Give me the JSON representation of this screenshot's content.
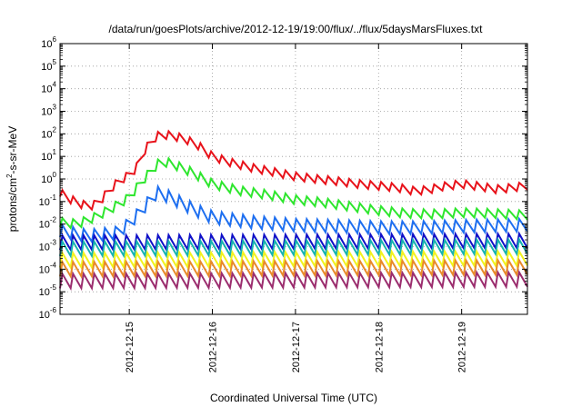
{
  "chart_data": {
    "type": "line",
    "title": "/data/run/goesPlots/archive/2012-12-19/19:00/flux/../flux/5daysMarsFluxes.txt",
    "xlabel": "Coordinated Universal Time (UTC)",
    "ylabel": "protons/cm²-s-sr-MeV",
    "ylabel_parts": {
      "main": "protons/cm",
      "sup": "2",
      "tail": "-s-sr-MeV"
    },
    "y_scale": "log",
    "ylim": [
      1e-06,
      1000000.0
    ],
    "y_ticks": [
      {
        "base": "10",
        "exp": "-6",
        "value": 1e-06
      },
      {
        "base": "10",
        "exp": "-5",
        "value": 1e-05
      },
      {
        "base": "10",
        "exp": "-4",
        "value": 0.0001
      },
      {
        "base": "10",
        "exp": "-3",
        "value": 0.001
      },
      {
        "base": "10",
        "exp": "-2",
        "value": 0.01
      },
      {
        "base": "10",
        "exp": "-1",
        "value": 0.1
      },
      {
        "base": "10",
        "exp": "0",
        "value": 1
      },
      {
        "base": "10",
        "exp": "1",
        "value": 10
      },
      {
        "base": "10",
        "exp": "2",
        "value": 100
      },
      {
        "base": "10",
        "exp": "3",
        "value": 1000
      },
      {
        "base": "10",
        "exp": "4",
        "value": 10000
      },
      {
        "base": "10",
        "exp": "5",
        "value": 100000
      },
      {
        "base": "10",
        "exp": "6",
        "value": 1000000
      }
    ],
    "xlim": [
      "2012-12-14 04:00",
      "2012-12-19 19:00"
    ],
    "x_ticks": [
      "2012-12-15",
      "2012-12-16",
      "2012-12-17",
      "2012-12-18",
      "2012-12-19"
    ],
    "grid": true,
    "legend": "none",
    "series": [
      {
        "color": "#e8121a",
        "x": [
          "2012-12-14 04:00",
          "2012-12-14 06:00",
          "2012-12-14 09:00",
          "2012-12-14 12:00",
          "2012-12-14 15:00",
          "2012-12-14 18:00",
          "2012-12-14 21:00",
          "2012-12-15 00:00",
          "2012-12-15 02:00",
          "2012-12-15 04:00",
          "2012-12-15 06:00",
          "2012-12-15 08:00",
          "2012-12-15 10:00",
          "2012-12-15 12:00",
          "2012-12-15 16:00",
          "2012-12-15 20:00",
          "2012-12-16 00:00",
          "2012-12-16 06:00",
          "2012-12-16 12:00",
          "2012-12-16 18:00",
          "2012-12-17 00:00",
          "2012-12-17 06:00",
          "2012-12-17 12:00",
          "2012-12-17 18:00",
          "2012-12-18 00:00",
          "2012-12-18 06:00",
          "2012-12-18 10:00",
          "2012-12-18 14:00",
          "2012-12-18 18:00",
          "2012-12-19 00:00",
          "2012-12-19 06:00",
          "2012-12-19 10:00",
          "2012-12-19 14:00",
          "2012-12-19 19:00"
        ],
        "y": [
          0.25,
          0.15,
          0.09,
          0.06,
          0.08,
          0.3,
          0.8,
          1.5,
          3,
          15,
          40,
          80,
          90,
          85,
          60,
          30,
          10,
          5,
          3,
          2,
          1.3,
          1,
          0.8,
          0.6,
          0.5,
          0.4,
          0.3,
          0.32,
          0.45,
          0.6,
          0.45,
          0.35,
          0.4,
          0.5
        ]
      },
      {
        "color": "#2ee62e",
        "x": [
          "2012-12-14 04:00",
          "2012-12-14 09:00",
          "2012-12-14 14:00",
          "2012-12-14 19:00",
          "2012-12-15 00:00",
          "2012-12-15 03:00",
          "2012-12-15 06:00",
          "2012-12-15 09:00",
          "2012-12-15 12:00",
          "2012-12-15 18:00",
          "2012-12-16 00:00",
          "2012-12-16 08:00",
          "2012-12-16 16:00",
          "2012-12-17 00:00",
          "2012-12-17 08:00",
          "2012-12-17 16:00",
          "2012-12-18 00:00",
          "2012-12-18 08:00",
          "2012-12-18 16:00",
          "2012-12-19 00:00",
          "2012-12-19 08:00",
          "2012-12-19 19:00"
        ],
        "y": [
          0.012,
          0.01,
          0.02,
          0.05,
          0.15,
          0.6,
          2,
          6,
          5,
          2,
          0.6,
          0.3,
          0.2,
          0.12,
          0.09,
          0.06,
          0.04,
          0.03,
          0.028,
          0.032,
          0.03,
          0.025
        ]
      },
      {
        "color": "#1e6ff0",
        "x": [
          "2012-12-14 04:00",
          "2012-12-14 12:00",
          "2012-12-14 20:00",
          "2012-12-15 00:00",
          "2012-12-15 04:00",
          "2012-12-15 08:00",
          "2012-12-15 12:00",
          "2012-12-15 18:00",
          "2012-12-16 00:00",
          "2012-12-16 12:00",
          "2012-12-17 00:00",
          "2012-12-17 12:00",
          "2012-12-18 00:00",
          "2012-12-18 12:00",
          "2012-12-19 00:00",
          "2012-12-19 19:00"
        ],
        "y": [
          0.005,
          0.003,
          0.004,
          0.01,
          0.05,
          0.25,
          0.15,
          0.05,
          0.02,
          0.012,
          0.009,
          0.008,
          0.007,
          0.007,
          0.008,
          0.009
        ]
      },
      {
        "color": "#1010c8",
        "x": [
          "2012-12-14 04:00",
          "2012-12-19 19:00"
        ],
        "y": [
          0.0015,
          0.0018
        ]
      },
      {
        "color": "#17b3b0",
        "x": [
          "2012-12-14 04:00",
          "2012-12-19 19:00"
        ],
        "y": [
          0.0008,
          0.001
        ]
      },
      {
        "color": "#f2f21e",
        "x": [
          "2012-12-14 04:00",
          "2012-12-19 19:00"
        ],
        "y": [
          0.00025,
          0.0003
        ]
      },
      {
        "color": "#e88a2a",
        "x": [
          "2012-12-14 04:00",
          "2012-12-19 19:00"
        ],
        "y": [
          0.0001,
          0.00012
        ]
      },
      {
        "color": "#9b2d6e",
        "x": [
          "2012-12-14 04:00",
          "2012-12-19 19:00"
        ],
        "y": [
          3e-05,
          3.5e-05
        ]
      }
    ]
  }
}
